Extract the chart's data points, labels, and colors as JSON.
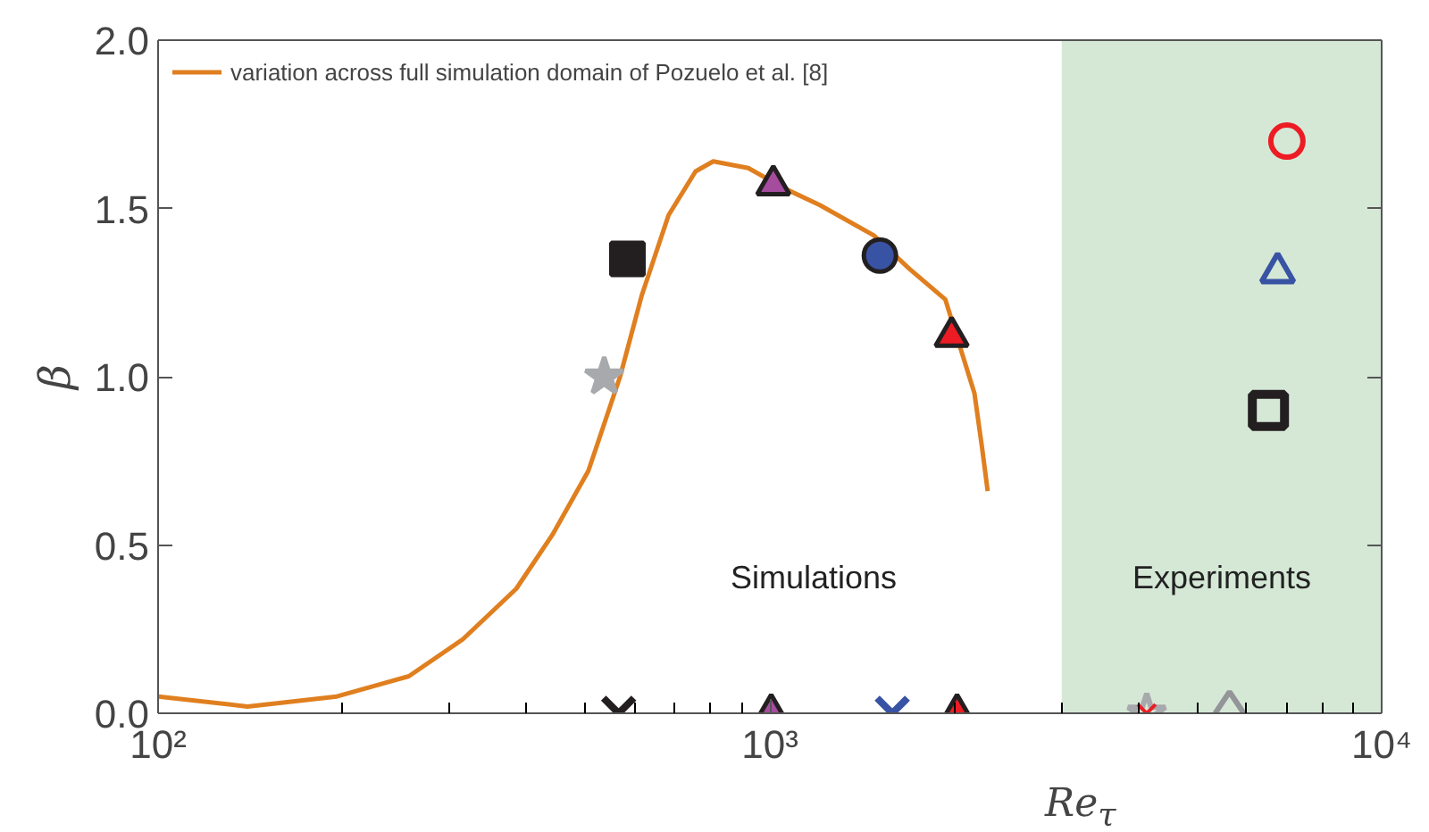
{
  "chart_data": {
    "type": "line",
    "xlabel": "Re$_{τ}$",
    "ylabel": "β",
    "log": "x",
    "xlim": [
      100,
      10000
    ],
    "xticks": [
      {
        "value": 100,
        "label": "10²"
      },
      {
        "value": 1000,
        "label": "10³"
      },
      {
        "value": 10000,
        "label": "10⁴"
      }
    ],
    "ylim": [
      0,
      2
    ],
    "yticks": [
      {
        "value": 0,
        "label": "0.0"
      },
      {
        "value": 0.5,
        "label": "0.5"
      },
      {
        "value": 1,
        "label": "1.0"
      },
      {
        "value": 1.5,
        "label": "1.5"
      },
      {
        "value": 2,
        "label": "2.0"
      }
    ],
    "grid": false,
    "legend": "top left",
    "bands": [
      {
        "axis": "x",
        "from": 3000,
        "to": 10000,
        "label": "Experiments",
        "color": "#d5e8d6"
      }
    ],
    "annotations": [
      "Simulations"
    ],
    "series": [
      {
        "name": "variation across full simulation domain of Pozuelo et al. [8]",
        "color": "#e07f1f",
        "x": [
          100,
          140,
          196,
          257,
          315,
          385,
          441,
          505,
          569,
          617,
          683,
          756,
          808,
          922,
          1055,
          1207,
          1478,
          1692,
          1935,
          2160,
          2222,
          2270
        ],
        "values": [
          0.05,
          0.02,
          0.05,
          0.11,
          0.22,
          0.37,
          0.53,
          0.72,
          1.0,
          1.24,
          1.48,
          1.61,
          1.64,
          1.62,
          1.56,
          1.51,
          1.42,
          1.32,
          1.23,
          0.95,
          0.79,
          0.66
        ]
      },
      {
        "type": "scatter",
        "marker": "star",
        "color": "#a7a9ac",
        "x": [
          536
        ],
        "values": [
          1.0
        ]
      },
      {
        "type": "scatter",
        "marker": "square",
        "color": "#231f20",
        "x": [
          585
        ],
        "values": [
          1.35
        ]
      },
      {
        "type": "scatter",
        "marker": "triangle",
        "color": "#a54c9e",
        "x": [
          1013
        ],
        "values": [
          1.57
        ]
      },
      {
        "type": "scatter",
        "marker": "circle",
        "color": "#3953a4",
        "x": [
          1513
        ],
        "values": [
          1.36
        ]
      },
      {
        "type": "scatter",
        "marker": "triangle",
        "color": "#ed1c24",
        "x": [
          1982
        ],
        "values": [
          1.12
        ]
      },
      {
        "type": "scatter",
        "marker": "cross",
        "color": "#231f20",
        "x": [
          566
        ],
        "values": [
          0
        ]
      },
      {
        "type": "scatter",
        "marker": "triangle",
        "color": "#a54c9e",
        "x": [
          1005
        ],
        "values": [
          0
        ]
      },
      {
        "type": "scatter",
        "marker": "cross",
        "color": "#3953a4",
        "x": [
          1585
        ],
        "values": [
          0
        ]
      },
      {
        "type": "scatter",
        "marker": "triangle",
        "color": "#ed1c24",
        "x": [
          2023
        ],
        "values": [
          0
        ]
      },
      {
        "type": "scatter",
        "marker": "star",
        "color": "#a7a9ac",
        "x": [
          4130
        ],
        "values": [
          0
        ]
      },
      {
        "type": "scatter",
        "marker": "cross",
        "color": "#ed1c24",
        "x": [
          4130
        ],
        "values": [
          0
        ]
      },
      {
        "type": "scatter",
        "marker": "diamond",
        "color": "#939598",
        "x": [
          5640
        ],
        "values": [
          0
        ]
      },
      {
        "type": "scatter",
        "marker": "circle",
        "color": "#ed1c24",
        "x": [
          7000
        ],
        "values": [
          1.7
        ]
      },
      {
        "type": "scatter",
        "marker": "triangle",
        "color": "#3953a4",
        "x": [
          6760
        ],
        "values": [
          1.31
        ]
      },
      {
        "type": "scatter",
        "marker": "square",
        "color": "#231f20",
        "x": [
          6530
        ],
        "values": [
          0.9
        ]
      }
    ]
  }
}
